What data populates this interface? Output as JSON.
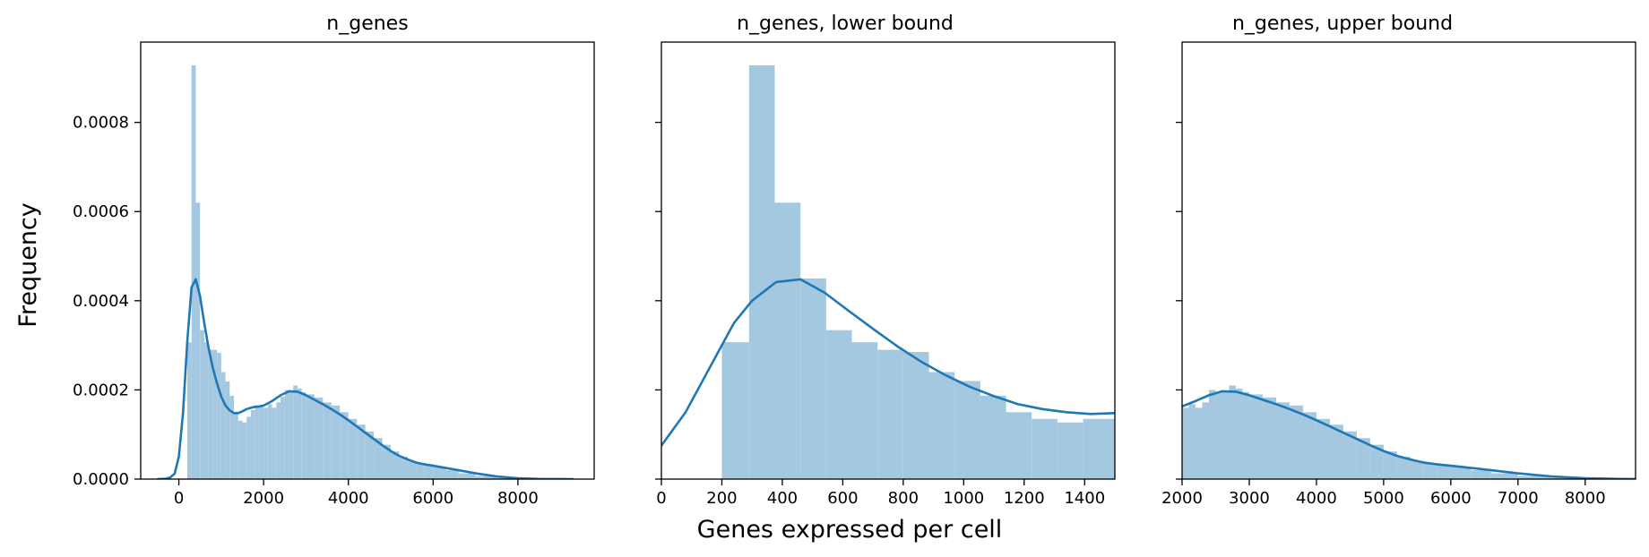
{
  "figure": {
    "ylabel": "Frequency",
    "xlabel": "Genes expressed per cell",
    "bar_color": "#a5c8e1",
    "line_color": "#1f77b4"
  },
  "chart_data": [
    {
      "type": "bar",
      "title": "n_genes",
      "xlim": [
        -900,
        9800
      ],
      "ylim": [
        0,
        0.00098
      ],
      "xticks": [
        0,
        2000,
        4000,
        6000,
        8000
      ],
      "yticks": [
        0.0,
        0.0002,
        0.0004,
        0.0006,
        0.0008
      ],
      "ytick_labels": [
        "0.0000",
        "0.0002",
        "0.0004",
        "0.0006",
        "0.0008"
      ],
      "show_ytick_labels": true,
      "bins": [
        [
          200,
          300,
          0.000307
        ],
        [
          300,
          400,
          0.000928
        ],
        [
          400,
          500,
          0.00062
        ],
        [
          500,
          600,
          0.000334
        ],
        [
          600,
          700,
          0.000307
        ],
        [
          700,
          800,
          0.00029
        ],
        [
          800,
          900,
          0.00029
        ],
        [
          900,
          1000,
          0.000283
        ],
        [
          1000,
          1100,
          0.00024
        ],
        [
          1100,
          1200,
          0.000219
        ],
        [
          1200,
          1300,
          0.000187
        ],
        [
          1300,
          1400,
          0.000147
        ],
        [
          1400,
          1500,
          0.000131
        ],
        [
          1500,
          1600,
          0.000127
        ],
        [
          1600,
          1700,
          0.00014
        ],
        [
          1700,
          1800,
          0.000155
        ],
        [
          1800,
          1900,
          0.000165
        ],
        [
          1900,
          2000,
          0.000165
        ],
        [
          2000,
          2100,
          0.00016
        ],
        [
          2100,
          2200,
          0.000168
        ],
        [
          2200,
          2300,
          0.00016
        ],
        [
          2300,
          2400,
          0.000172
        ],
        [
          2400,
          2500,
          0.000185
        ],
        [
          2500,
          2600,
          0.0002
        ],
        [
          2600,
          2700,
          0.000198
        ],
        [
          2700,
          2800,
          0.00021
        ],
        [
          2800,
          2900,
          0.000203
        ],
        [
          2900,
          3000,
          0.000195
        ],
        [
          3000,
          3200,
          0.00019
        ],
        [
          3200,
          3400,
          0.000183
        ],
        [
          3400,
          3600,
          0.000172
        ],
        [
          3600,
          3800,
          0.000165
        ],
        [
          3800,
          4000,
          0.00015
        ],
        [
          4000,
          4200,
          0.000135
        ],
        [
          4200,
          4400,
          0.000122
        ],
        [
          4400,
          4600,
          0.000107
        ],
        [
          4600,
          4800,
          9.2e-05
        ],
        [
          4800,
          5000,
          7.7e-05
        ],
        [
          5000,
          5200,
          6.2e-05
        ],
        [
          5200,
          5400,
          5e-05
        ],
        [
          5400,
          5600,
          4.1e-05
        ],
        [
          5600,
          5800,
          3.5e-05
        ],
        [
          5800,
          6000,
          3.1e-05
        ],
        [
          6000,
          6300,
          2.7e-05
        ],
        [
          6300,
          6600,
          2e-05
        ],
        [
          6600,
          7000,
          1.3e-05
        ],
        [
          7000,
          7500,
          7e-06
        ],
        [
          7500,
          8200,
          3e-06
        ],
        [
          8200,
          9000,
          1e-06
        ]
      ],
      "kde": {
        "x": [
          -500,
          -300,
          -200,
          -100,
          0,
          100,
          200,
          300,
          400,
          500,
          600,
          700,
          800,
          900,
          1000,
          1100,
          1200,
          1300,
          1400,
          1500,
          1600,
          1700,
          1800,
          1900,
          2000,
          2200,
          2400,
          2600,
          2800,
          3000,
          3200,
          3400,
          3600,
          3800,
          4000,
          4200,
          4400,
          4600,
          4800,
          5000,
          5200,
          5400,
          5600,
          5800,
          6000,
          6300,
          6600,
          7000,
          7500,
          8000,
          8500,
          9000,
          9300
        ],
        "y": [
          0,
          1e-06,
          4e-06,
          1.2e-05,
          5e-05,
          0.00015,
          0.00031,
          0.00043,
          0.000448,
          0.00041,
          0.00035,
          0.000295,
          0.00025,
          0.000215,
          0.000185,
          0.000165,
          0.000154,
          0.000148,
          0.000148,
          0.000152,
          0.000157,
          0.00016,
          0.000162,
          0.000163,
          0.000165,
          0.000175,
          0.000188,
          0.000197,
          0.000196,
          0.000188,
          0.000178,
          0.000168,
          0.000157,
          0.000145,
          0.000132,
          0.000118,
          0.000104,
          9e-05,
          7.6e-05,
          6.3e-05,
          5.2e-05,
          4.4e-05,
          3.7e-05,
          3.3e-05,
          3e-05,
          2.5e-05,
          2e-05,
          1.3e-05,
          6e-06,
          2e-06,
          5e-07,
          1e-07,
          0
        ]
      }
    },
    {
      "type": "bar",
      "title": "n_genes, lower bound",
      "xlim": [
        0,
        1500
      ],
      "ylim": [
        0,
        0.00098
      ],
      "xticks": [
        0,
        200,
        400,
        600,
        800,
        1000,
        1200,
        1400
      ],
      "yticks": [
        0.0,
        0.0002,
        0.0004,
        0.0006,
        0.0008
      ],
      "ytick_labels": [
        "0.0000",
        "0.0002",
        "0.0004",
        "0.0006",
        "0.0008"
      ],
      "show_ytick_labels": false,
      "bins": [
        [
          200,
          290,
          0.000307
        ],
        [
          290,
          375,
          0.000928
        ],
        [
          375,
          460,
          0.00062
        ],
        [
          460,
          545,
          0.00045
        ],
        [
          545,
          630,
          0.000334
        ],
        [
          630,
          715,
          0.000307
        ],
        [
          715,
          800,
          0.00029
        ],
        [
          800,
          885,
          0.000285
        ],
        [
          885,
          970,
          0.00024
        ],
        [
          970,
          1055,
          0.00022
        ],
        [
          1055,
          1140,
          0.000187
        ],
        [
          1140,
          1225,
          0.00015
        ],
        [
          1225,
          1310,
          0.000135
        ],
        [
          1310,
          1395,
          0.000127
        ],
        [
          1395,
          1500,
          0.000135
        ]
      ],
      "kde": {
        "x": [
          0,
          80,
          160,
          240,
          300,
          380,
          460,
          540,
          620,
          700,
          780,
          860,
          940,
          1020,
          1100,
          1180,
          1260,
          1340,
          1420,
          1500
        ],
        "y": [
          7.5e-05,
          0.00015,
          0.00025,
          0.00035,
          0.0004,
          0.000442,
          0.000448,
          0.000418,
          0.000377,
          0.000337,
          0.000298,
          0.000263,
          0.000233,
          0.000207,
          0.000186,
          0.000168,
          0.000157,
          0.00015,
          0.000146,
          0.000148
        ]
      }
    },
    {
      "type": "bar",
      "title": "n_genes, upper bound",
      "xlim": [
        2000,
        8750
      ],
      "ylim": [
        0,
        0.00098
      ],
      "xticks": [
        2000,
        3000,
        4000,
        5000,
        6000,
        7000,
        8000
      ],
      "yticks": [
        0.0,
        0.0002,
        0.0004,
        0.0006,
        0.0008
      ],
      "ytick_labels": [
        "0.0000",
        "0.0002",
        "0.0004",
        "0.0006",
        "0.0008"
      ],
      "show_ytick_labels": false,
      "bins": [
        [
          2000,
          2100,
          0.00016
        ],
        [
          2100,
          2200,
          0.000168
        ],
        [
          2200,
          2300,
          0.00016
        ],
        [
          2300,
          2400,
          0.000172
        ],
        [
          2400,
          2500,
          0.0002
        ],
        [
          2500,
          2600,
          0.000195
        ],
        [
          2600,
          2700,
          0.000198
        ],
        [
          2700,
          2800,
          0.00021
        ],
        [
          2800,
          2900,
          0.000203
        ],
        [
          2900,
          3000,
          0.000195
        ],
        [
          3000,
          3200,
          0.00019
        ],
        [
          3200,
          3400,
          0.000183
        ],
        [
          3400,
          3600,
          0.000172
        ],
        [
          3600,
          3800,
          0.000165
        ],
        [
          3800,
          4000,
          0.00015
        ],
        [
          4000,
          4200,
          0.000135
        ],
        [
          4200,
          4400,
          0.000122
        ],
        [
          4400,
          4600,
          0.000107
        ],
        [
          4600,
          4800,
          9.2e-05
        ],
        [
          4800,
          5000,
          7.7e-05
        ],
        [
          5000,
          5200,
          6.2e-05
        ],
        [
          5200,
          5400,
          5e-05
        ],
        [
          5400,
          5600,
          4.1e-05
        ],
        [
          5600,
          5800,
          3.5e-05
        ],
        [
          5800,
          6000,
          3.1e-05
        ],
        [
          6000,
          6300,
          2.7e-05
        ],
        [
          6300,
          6600,
          2e-05
        ],
        [
          6600,
          7000,
          1.3e-05
        ],
        [
          7000,
          7500,
          7e-06
        ],
        [
          7500,
          8200,
          3e-06
        ],
        [
          8200,
          8750,
          1e-06
        ]
      ],
      "kde": {
        "x": [
          2000,
          2200,
          2400,
          2600,
          2800,
          3000,
          3200,
          3400,
          3600,
          3800,
          4000,
          4200,
          4400,
          4600,
          4800,
          5000,
          5200,
          5400,
          5600,
          5800,
          6000,
          6300,
          6600,
          7000,
          7500,
          8000,
          8500,
          8750
        ],
        "y": [
          0.000163,
          0.000175,
          0.000188,
          0.000197,
          0.000196,
          0.000188,
          0.000178,
          0.000168,
          0.000157,
          0.000145,
          0.000132,
          0.000118,
          0.000104,
          9e-05,
          7.6e-05,
          6.3e-05,
          5.2e-05,
          4.4e-05,
          3.7e-05,
          3.3e-05,
          3e-05,
          2.5e-05,
          2e-05,
          1.3e-05,
          6e-06,
          2e-06,
          5e-07,
          2e-07
        ]
      }
    }
  ]
}
